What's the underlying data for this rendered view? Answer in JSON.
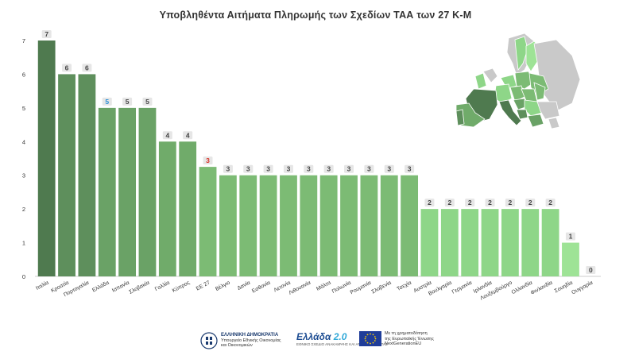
{
  "chart_data": {
    "type": "bar",
    "title": "Υποβληθέντα Αιτήματα Πληρωμής των Σχεδίων ΤΑΑ των 27 Κ-Μ",
    "xlabel": "",
    "ylabel": "",
    "ylim": [
      0,
      7
    ],
    "yticks": [
      0,
      1,
      2,
      3,
      4,
      5,
      6,
      7
    ],
    "grid": false,
    "legend": "none",
    "categories": [
      "Ιταλία",
      "Κροατία",
      "Πορτογαλία",
      "Ελλάδα",
      "Ισπανία",
      "Σλοβακία",
      "Γαλλία",
      "Κύπρος",
      "ΕΕ 27",
      "Βέλγιο",
      "Δανία",
      "Εσθονία",
      "Λετονία",
      "Λιθουανία",
      "Μάλτα",
      "Πολωνία",
      "Ρουμανία",
      "Σλοβενία",
      "Τσεχία",
      "Αυστρία",
      "Βουλγαρία",
      "Γερμανία",
      "Ιρλανδία",
      "Λουξεμβούργο",
      "Ολλανδία",
      "Φινλανδία",
      "Σουηδία",
      "Ουγγαρία"
    ],
    "values": [
      7,
      6,
      6,
      5,
      5,
      5,
      4,
      4,
      3.25,
      3,
      3,
      3,
      3,
      3,
      3,
      3,
      3,
      3,
      3,
      2,
      2,
      2,
      2,
      2,
      2,
      2,
      1,
      0
    ],
    "data_labels": [
      "7",
      "6",
      "6",
      "5",
      "5",
      "5",
      "4",
      "4",
      "3",
      "3",
      "3",
      "3",
      "3",
      "3",
      "3",
      "3",
      "3",
      "3",
      "3",
      "2",
      "2",
      "2",
      "2",
      "2",
      "2",
      "2",
      "1",
      "0"
    ],
    "highlight_label_colors": {
      "Ελλάδα": "#2a8fd6",
      "ΕΕ 27": "#d93025"
    },
    "colors": {
      "7": "#4f7a4f",
      "6": "#5e8f5c",
      "5": "#6aa266",
      "4": "#70ab6a",
      "3": "#7cbb74",
      "2": "#8ed688",
      "1": "#9ee396",
      "0": "#9ee396"
    }
  },
  "footer": {
    "logo1_line1": "ΕΛΛΗΝΙΚΗ ΔΗΜΟΚΡΑΤΙΑ",
    "logo1_line2": "Υπουργείο Εθνικής Οικονομίας",
    "logo1_line3": "και Οικονομικών",
    "logo2_main": "Ελλάδα",
    "logo2_num": "2.0",
    "logo2_sub": "ΕΘΝΙΚΟ ΣΧΕΔΙΟ ΑΝΑΚΑΜΨΗΣ ΚΑΙ ΑΝΘΕΚΤΙΚΟΤΗΤΑΣ",
    "logo3_line1": "Με τη χρηματοδότηση",
    "logo3_line2": "της Ευρωπαϊκής Ένωσης",
    "logo3_line3": "NextGenerationEU"
  }
}
